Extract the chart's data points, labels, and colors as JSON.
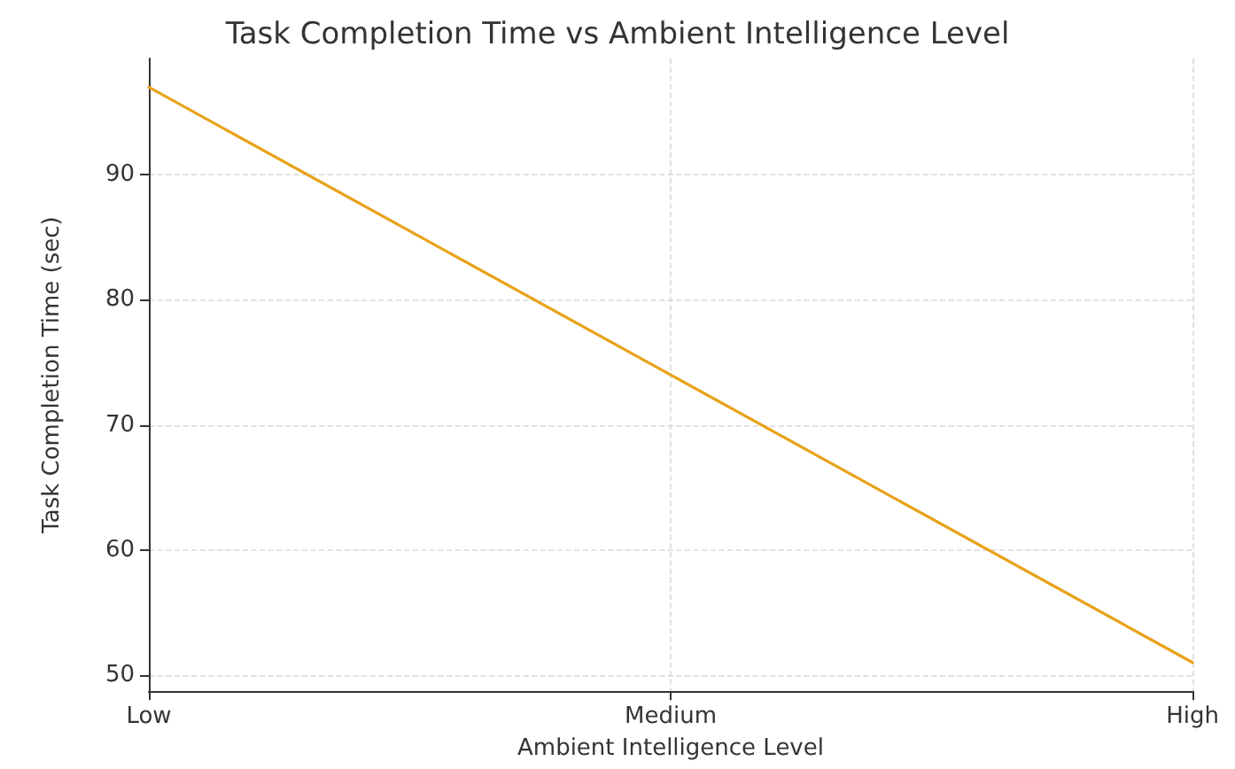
{
  "chart_data": {
    "type": "line",
    "title": "Task Completion Time vs Ambient Intelligence Level",
    "xlabel": "Ambient Intelligence Level",
    "ylabel": "Task Completion Time (sec)",
    "categories": [
      "Low",
      "Medium",
      "High"
    ],
    "series": [
      {
        "color": "#e8a21a",
        "values": [
          97,
          74,
          51
        ]
      }
    ],
    "ylim": [
      48.7,
      99.3
    ],
    "yticks": [
      50,
      60,
      70,
      80,
      90
    ],
    "grid": true,
    "marker": "none",
    "line_style": "solid"
  }
}
